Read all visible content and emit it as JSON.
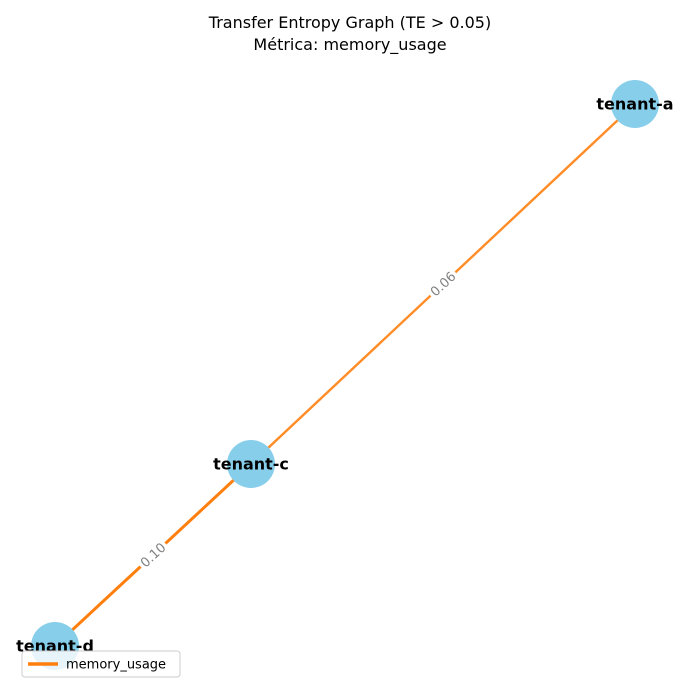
{
  "title": {
    "line1": "Transfer Entropy Graph (TE > 0.05)",
    "line2": "Métrica: memory_usage"
  },
  "colors": {
    "node": "#87CEEB",
    "edge": "#FF7F0E",
    "edge_label": "#808080"
  },
  "nodes": [
    {
      "id": "tenant-a",
      "label": "tenant-a"
    },
    {
      "id": "tenant-c",
      "label": "tenant-c"
    },
    {
      "id": "tenant-d",
      "label": "tenant-d"
    }
  ],
  "edges": [
    {
      "from": "tenant-a",
      "to": "tenant-c",
      "weight": 0.06,
      "label": "0.06"
    },
    {
      "from": "tenant-c",
      "to": "tenant-d",
      "weight": 0.1,
      "label": "0.10"
    }
  ],
  "legend": {
    "label": "memory_usage"
  }
}
